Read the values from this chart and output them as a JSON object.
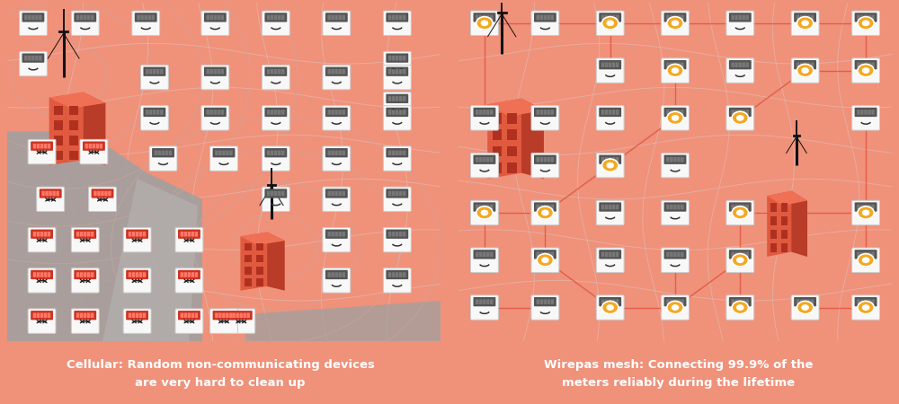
{
  "bg_outer": "#f0917a",
  "bg_panel": "#f2d4cb",
  "road_color": "#a0a0a0",
  "road_color2": "#b8b8b8",
  "meter_bg": "#f0f0f0",
  "meter_border": "#bbbbbb",
  "meter_screen_ok": "#555555",
  "meter_screen_bad": "#cc3322",
  "meter_digit_ok": "#777777",
  "meter_digit_bad": "#ff7766",
  "smile_color": "#333333",
  "building_front": "#e05a40",
  "building_side": "#b83c28",
  "building_top": "#f07055",
  "building_window": "#b03020",
  "antenna_color": "#111111",
  "circle_color": "#c8a8a0",
  "mesh_line_color": "#e05540",
  "mesh_dot_outer": "#f5a820",
  "mesh_dot_inner": "#ffffff",
  "map_line_color": "#e0c0b8",
  "text_color": "#ffffff",
  "caption_left": "Cellular: Random non-communicating devices\nare very hard to clean up",
  "caption_right": "Wirepas mesh: Connecting 99.9% of the\nmeters reliably during the lifetime"
}
